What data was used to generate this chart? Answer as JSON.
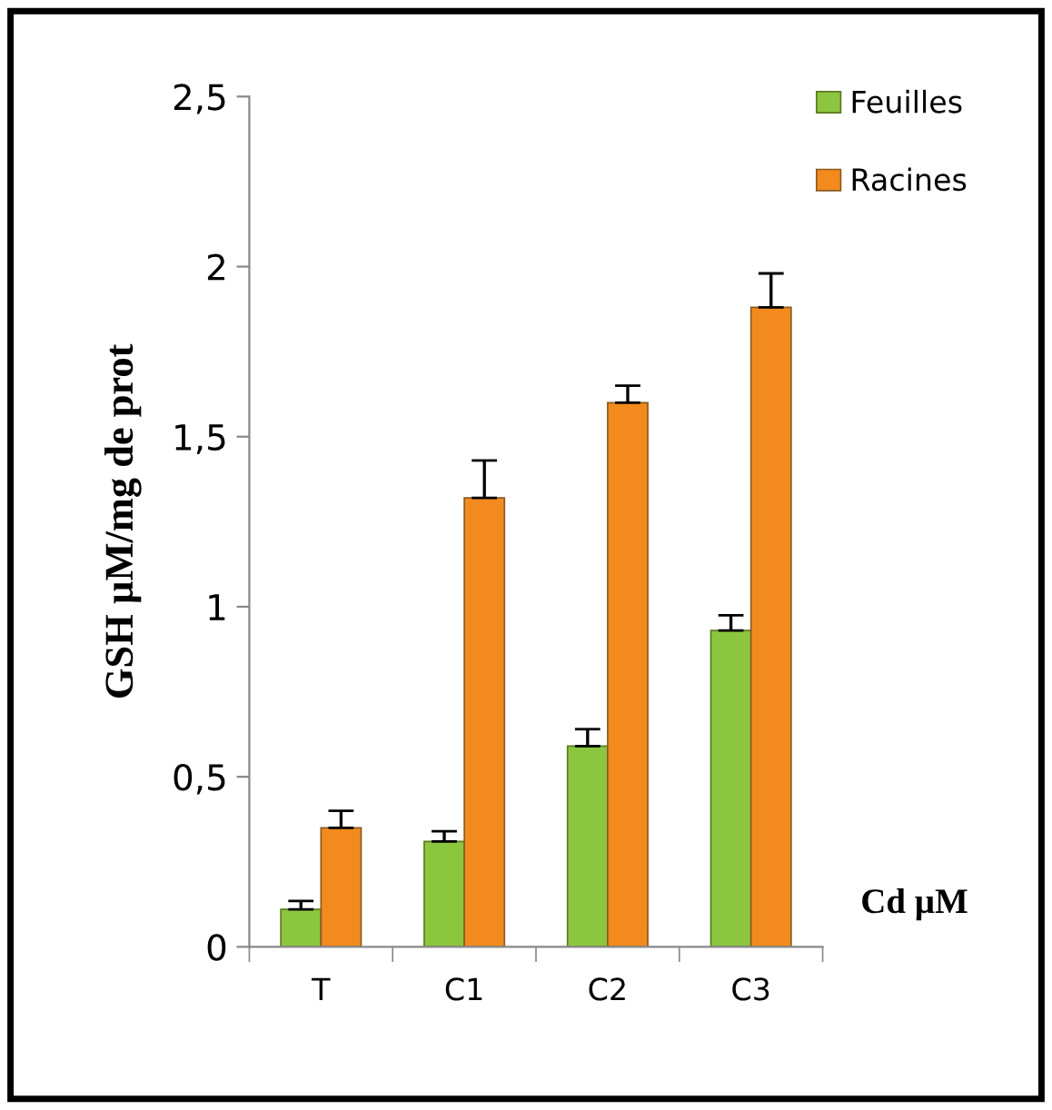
{
  "chart_data": {
    "type": "bar",
    "ylabel": "GSH µM/mg de prot",
    "annotations": [
      "Cd µM"
    ],
    "categories": [
      "T",
      "C1",
      "C2",
      "C3"
    ],
    "series": [
      {
        "name": "Feuilles",
        "color": "#8cc63f",
        "values": [
          0.11,
          0.31,
          0.59,
          0.93
        ],
        "errors": [
          0.025,
          0.03,
          0.05,
          0.045
        ]
      },
      {
        "name": "Racines",
        "color": "#f28a1e",
        "values": [
          0.35,
          1.32,
          1.6,
          1.88
        ],
        "errors": [
          0.05,
          0.11,
          0.05,
          0.1
        ]
      }
    ],
    "ylim": [
      0,
      2.5
    ],
    "yticks": [
      0,
      {
        "value": 0.5,
        "label": "0,5"
      },
      1,
      {
        "value": 1.5,
        "label": "1,5"
      },
      2,
      {
        "value": 2.5,
        "label": "2,5"
      }
    ],
    "grid": false,
    "legend": "top right"
  }
}
